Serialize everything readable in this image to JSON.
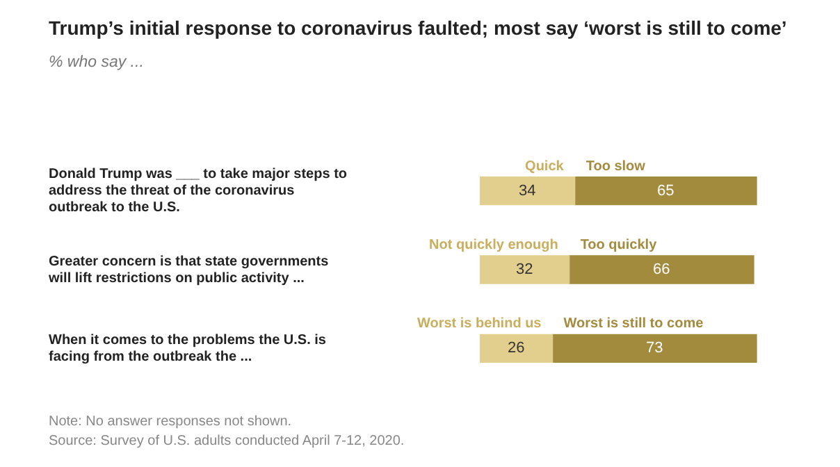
{
  "chart_data": {
    "type": "bar",
    "orientation": "horizontal",
    "stacked": true,
    "title": "Trump’s initial response to coronavirus faulted; most say ‘worst is still to come’",
    "subtitle": "% who say ...",
    "categories": [
      "Donald Trump was ___ to take major steps to address the threat of the coronavirus outbreak to the U.S.",
      "Greater concern is that state governments will lift restrictions on public activity ...",
      "When it comes to the problems the U.S. is facing from the outbreak the ..."
    ],
    "series": [
      {
        "color": "#e2cf8e",
        "values": [
          34,
          32,
          26
        ]
      },
      {
        "color": "#a38b3e",
        "values": [
          65,
          66,
          73
        ]
      }
    ],
    "data_labels": true,
    "tick_labels": "y",
    "legend": false,
    "annotations": [
      "Quick",
      "Too slow",
      "Not quickly enough",
      "Too quickly",
      "Worst is behind us",
      "Worst is still to come",
      "Note: No answer responses not shown.",
      "Source: Survey of U.S. adults conducted April 7-12, 2020."
    ]
  }
}
